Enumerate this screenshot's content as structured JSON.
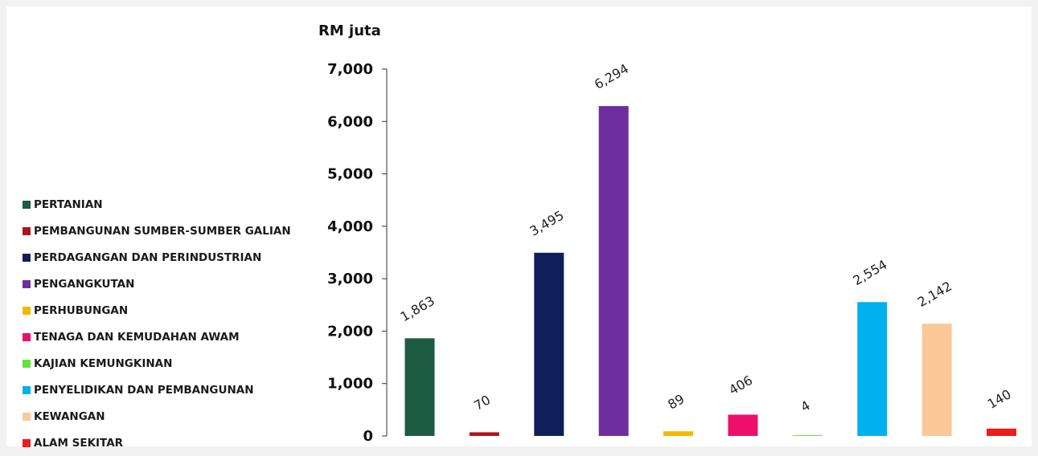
{
  "chart_data": {
    "type": "bar",
    "ylabel": "RM juta",
    "ylim": [
      0,
      7000
    ],
    "yticks": [
      0,
      1000,
      2000,
      3000,
      4000,
      5000,
      6000,
      7000
    ],
    "ytick_labels": [
      "0",
      "1,000",
      "2,000",
      "3,000",
      "4,000",
      "5,000",
      "6,000",
      "7,000"
    ],
    "grid": false,
    "legend_position": "left",
    "categories": [
      "PERTANIAN",
      "PEMBANGUNAN SUMBER-SUMBER GALIAN",
      "PERDAGANGAN DAN PERINDUSTRIAN",
      "PENGANGKUTAN",
      "PERHUBUNGAN",
      "TENAGA DAN KEMUDAHAN AWAM",
      "KAJIAN KEMUNGKINAN",
      "PENYELIDIKAN DAN PEMBANGUNAN",
      "KEWANGAN",
      "ALAM SEKITAR"
    ],
    "values": [
      1863,
      70,
      3495,
      6294,
      89,
      406,
      4,
      2554,
      2142,
      140
    ],
    "value_labels": [
      "1,863",
      "70",
      "3,495",
      "6,294",
      "89",
      "406",
      "4",
      "2,554",
      "2,142",
      "140"
    ],
    "colors": [
      "#1d5b43",
      "#b0141a",
      "#0f1f5c",
      "#6f2e9e",
      "#f5b800",
      "#ee0f6a",
      "#66e33a",
      "#00b0ef",
      "#fbc898",
      "#ee1c1c"
    ]
  }
}
